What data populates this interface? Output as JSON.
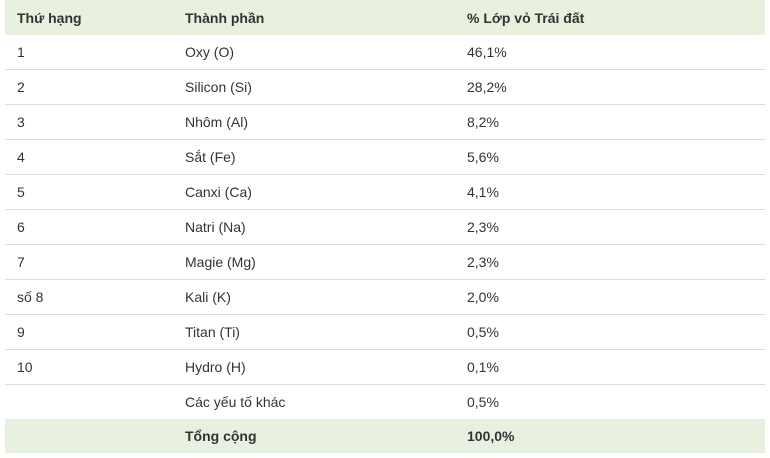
{
  "table": {
    "headers": [
      "Thứ hạng",
      "Thành phần",
      "% Lớp vỏ Trái đất"
    ],
    "rows": [
      {
        "rank": "1",
        "element": "Oxy (O)",
        "percent": "46,1%"
      },
      {
        "rank": "2",
        "element": "Silicon (Si)",
        "percent": "28,2%"
      },
      {
        "rank": "3",
        "element": "Nhôm (Al)",
        "percent": "8,2%"
      },
      {
        "rank": "4",
        "element": "Sắt (Fe)",
        "percent": "5,6%"
      },
      {
        "rank": "5",
        "element": "Canxi (Ca)",
        "percent": "4,1%"
      },
      {
        "rank": "6",
        "element": "Natri (Na)",
        "percent": "2,3%"
      },
      {
        "rank": "7",
        "element": "Magie (Mg)",
        "percent": "2,3%"
      },
      {
        "rank": "số 8",
        "element": "Kali (K)",
        "percent": "2,0%"
      },
      {
        "rank": "9",
        "element": "Titan (Ti)",
        "percent": "0,5%"
      },
      {
        "rank": "10",
        "element": "Hydro (H)",
        "percent": "0,1%"
      },
      {
        "rank": "",
        "element": "Các yếu tố khác",
        "percent": "0,5%"
      }
    ],
    "footer": {
      "rank": "",
      "element": "Tổng cộng",
      "percent": "100,0%"
    }
  },
  "colors": {
    "header_bg": "#e8f0df",
    "row_divider": "#dcdcdc",
    "text": "#333333"
  }
}
